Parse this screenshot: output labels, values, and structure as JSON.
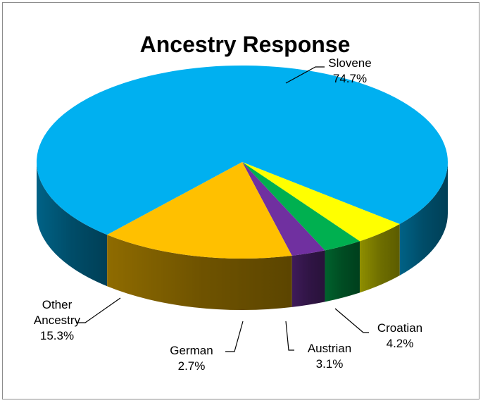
{
  "chart_data": {
    "type": "pie",
    "title": "Ancestry Response",
    "three_d": true,
    "legend": "none",
    "slices": [
      {
        "label_lines": [
          "Slovene"
        ],
        "percent": "74.7%",
        "value": 74.7,
        "color": "#00B0F0"
      },
      {
        "label_lines": [
          "Croatian"
        ],
        "percent": "4.2%",
        "value": 4.2,
        "color": "#FFFF00"
      },
      {
        "label_lines": [
          "Austrian"
        ],
        "percent": "3.1%",
        "value": 3.1,
        "color": "#00B050"
      },
      {
        "label_lines": [
          "German"
        ],
        "percent": "2.7%",
        "value": 2.7,
        "color": "#7030A0"
      },
      {
        "label_lines": [
          "Other",
          "Ancestry"
        ],
        "percent": "15.3%",
        "value": 15.3,
        "color": "#FFC000"
      }
    ]
  }
}
